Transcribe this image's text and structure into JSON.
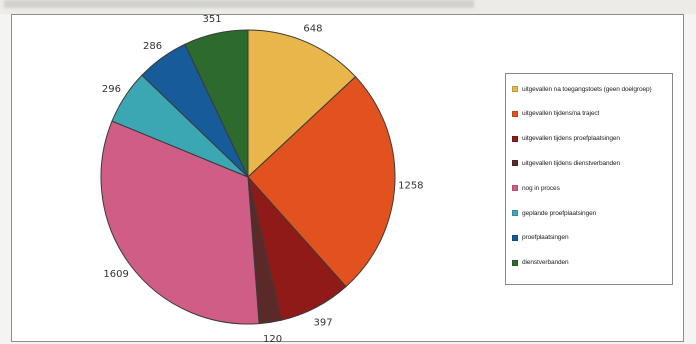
{
  "chart_data": {
    "type": "pie",
    "title": "",
    "start_angle_deg": 0,
    "direction": "clockwise",
    "series": [
      {
        "name": "uitgevallen na toegangstoets (geen doelgroep)",
        "value": 648,
        "color": "#e8b64a"
      },
      {
        "name": "uitgevallen tijdens/na traject",
        "value": 1258,
        "color": "#e2521f"
      },
      {
        "name": "uitgevallen tijdens proefplaatsingen",
        "value": 397,
        "color": "#8f1a18"
      },
      {
        "name": "uitgevallen tijdens dienstverbanden",
        "value": 120,
        "color": "#5b2a28"
      },
      {
        "name": "nog in proces",
        "value": 1609,
        "color": "#cf5d86"
      },
      {
        "name": "geplande proefplaatsingen",
        "value": 296,
        "color": "#3aa7b3"
      },
      {
        "name": "proefplaatsingen",
        "value": 286,
        "color": "#175b9b"
      },
      {
        "name": "dienstverbanden",
        "value": 351,
        "color": "#2c6a2d"
      }
    ],
    "legend_position": "right"
  }
}
